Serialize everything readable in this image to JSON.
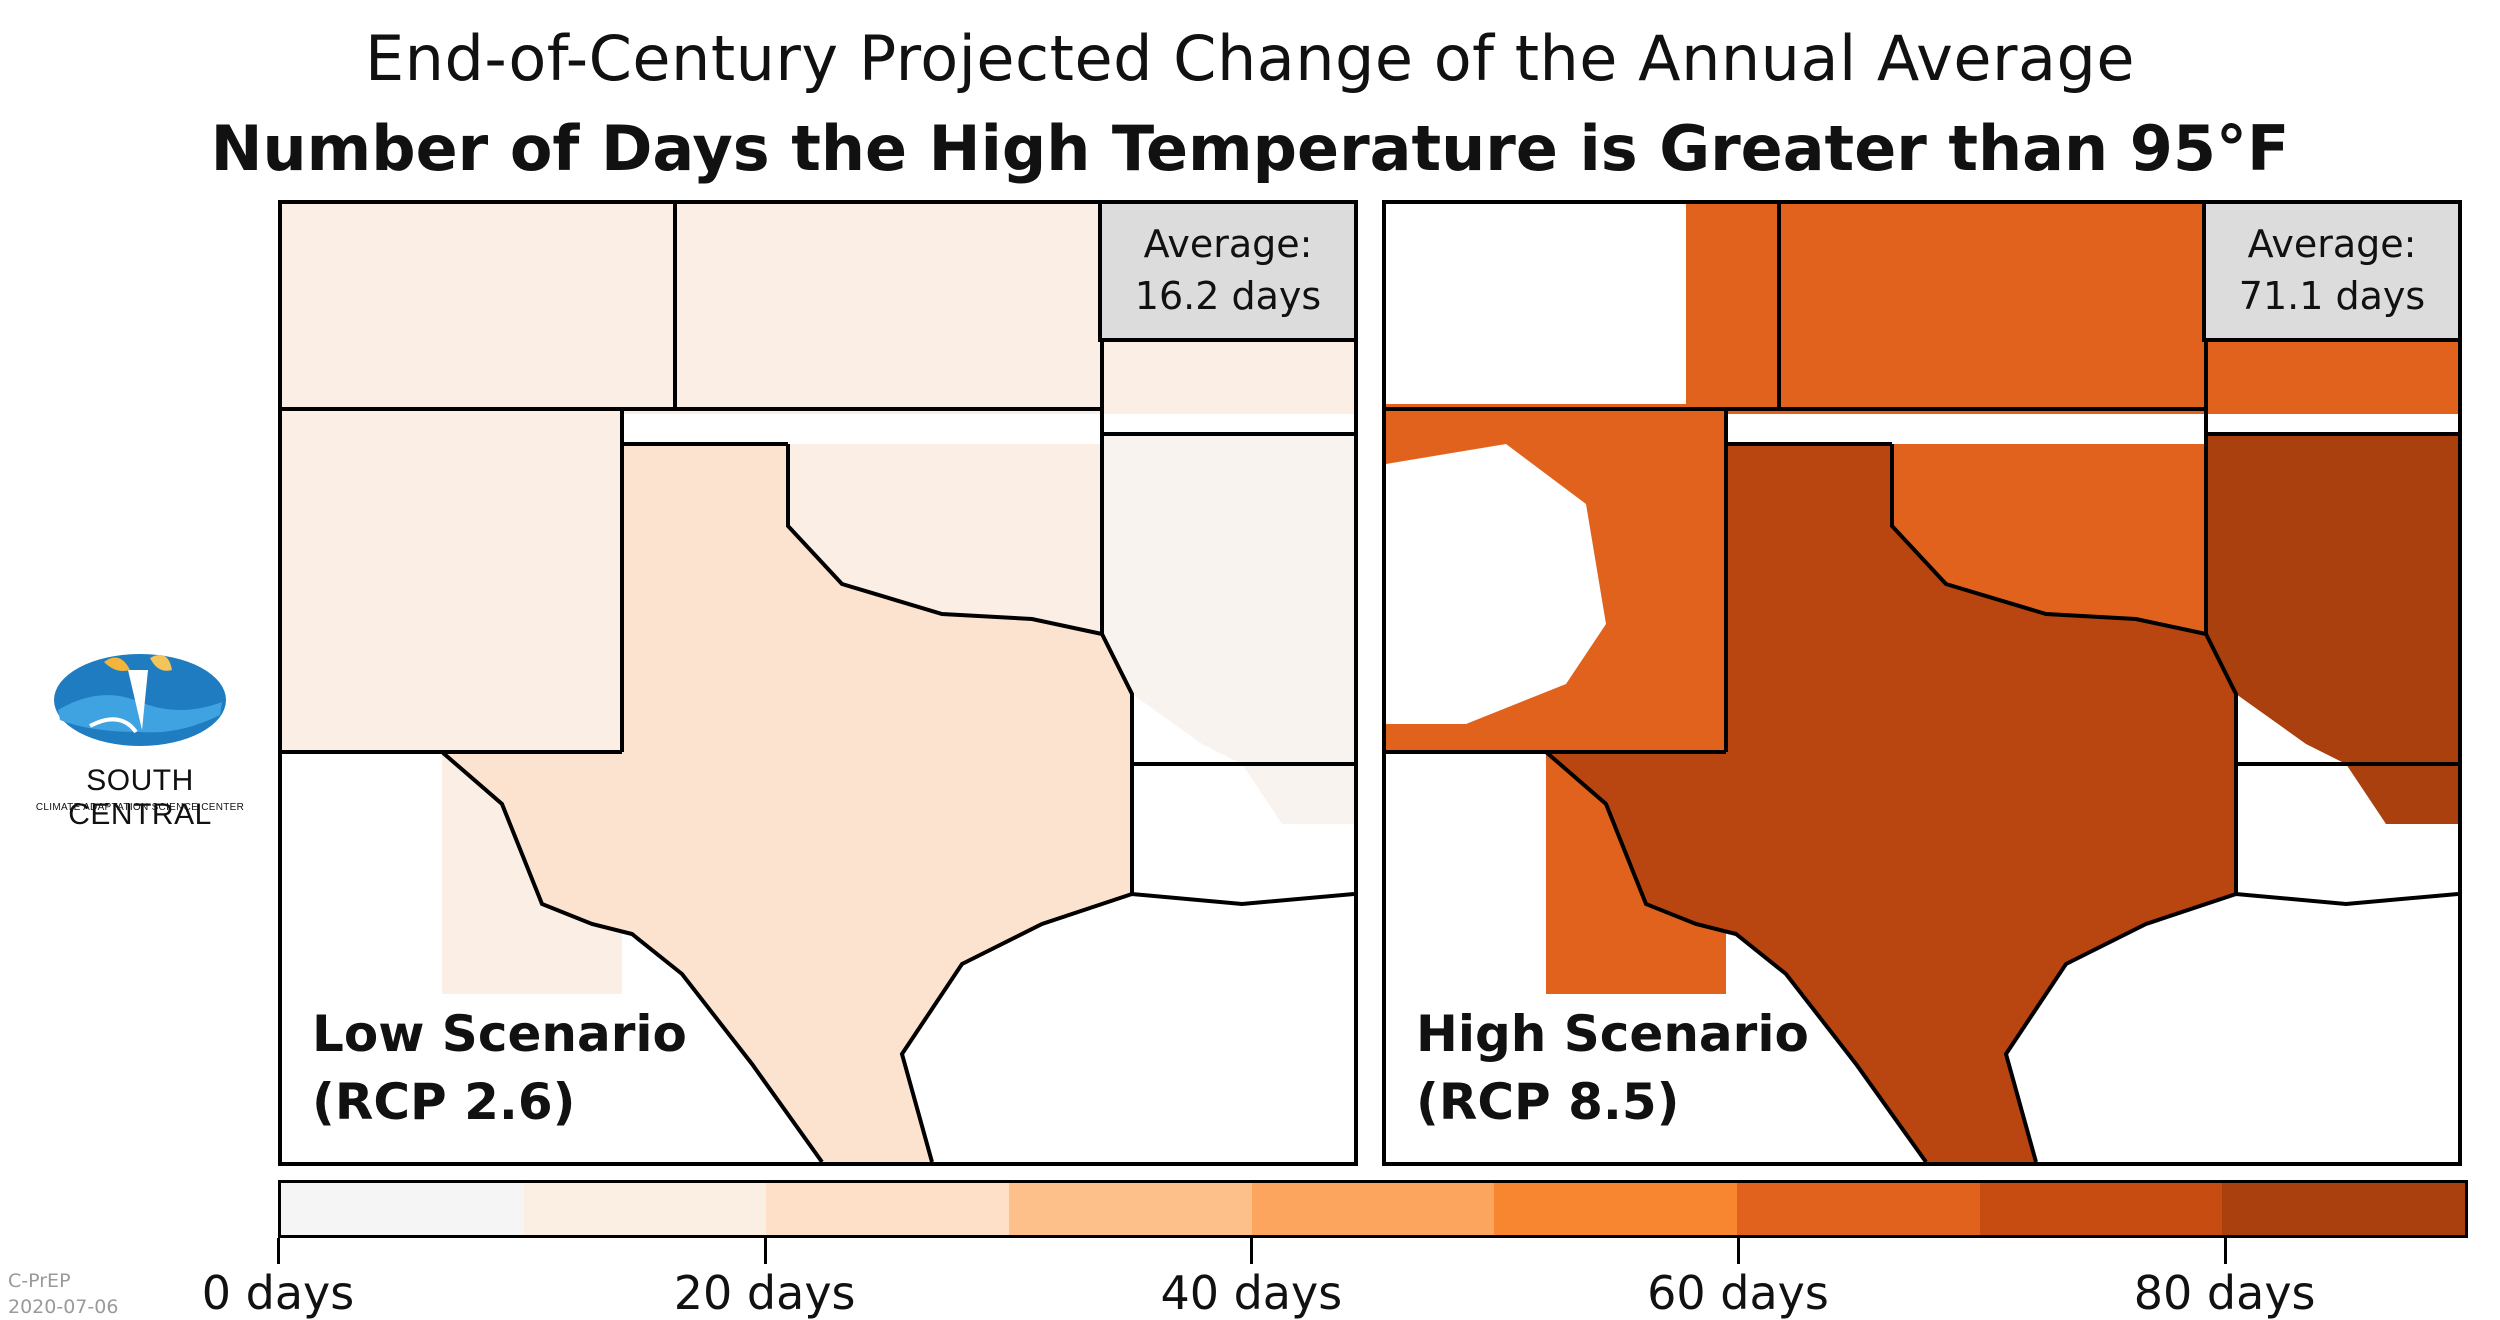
{
  "title_line1": "End-of-Century Projected Change of the Annual Average",
  "title_line2": "Number of Days the High Temperature is Greater than 95°F",
  "panels": [
    {
      "scenario_line1": "Low Scenario",
      "scenario_line2": "(RCP 2.6)",
      "average_label": "Average:",
      "average_value": "16.2 days",
      "base_color": "#fbe3cf",
      "north_color": "#fbeee4",
      "east_color": "#f9f3f0"
    },
    {
      "scenario_line1": "High Scenario",
      "scenario_line2": "(RCP 8.5)",
      "average_label": "Average:",
      "average_value": "71.1 days",
      "base_color": "#b94510",
      "north_color": "#e0621d",
      "east_color": "#a9400d"
    }
  ],
  "colorbar": {
    "colors": [
      "#f5f5f5",
      "#fbeee3",
      "#fde0c7",
      "#fdc08b",
      "#fba55e",
      "#f8852f",
      "#e0621d",
      "#c74c12",
      "#a9400d"
    ],
    "tick_labels": [
      "0 days",
      "20 days",
      "40 days",
      "60 days",
      "80 days"
    ],
    "tick_values": [
      0,
      20,
      40,
      60,
      80
    ],
    "max_value": 90
  },
  "logo": {
    "name": "SOUTH CENTRAL",
    "subtitle": "CLIMATE ADAPTATION SCIENCE CENTER"
  },
  "source": {
    "line1": "C-PrEP",
    "line2": "2020-07-06"
  }
}
